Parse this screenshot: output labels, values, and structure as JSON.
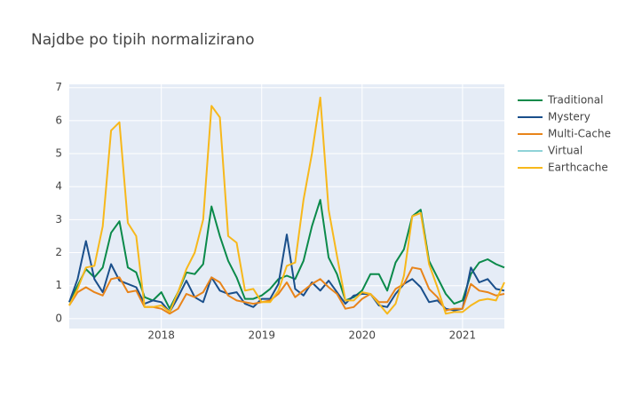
{
  "chart_data": {
    "type": "line",
    "title": "Najdbe po tipih normalizirano",
    "x": [
      "2017-02",
      "2017-03",
      "2017-04",
      "2017-05",
      "2017-06",
      "2017-07",
      "2017-08",
      "2017-09",
      "2017-10",
      "2017-11",
      "2017-12",
      "2018-01",
      "2018-02",
      "2018-03",
      "2018-04",
      "2018-05",
      "2018-06",
      "2018-07",
      "2018-08",
      "2018-09",
      "2018-10",
      "2018-11",
      "2018-12",
      "2019-01",
      "2019-02",
      "2019-03",
      "2019-04",
      "2019-05",
      "2019-06",
      "2019-07",
      "2019-08",
      "2019-09",
      "2019-10",
      "2019-11",
      "2019-12",
      "2020-01",
      "2020-02",
      "2020-03",
      "2020-04",
      "2020-05",
      "2020-06",
      "2020-07",
      "2020-08",
      "2020-09",
      "2020-10",
      "2020-11",
      "2020-12",
      "2021-01",
      "2021-02",
      "2021-03",
      "2021-04",
      "2021-05",
      "2021-06"
    ],
    "series": [
      {
        "name": "Traditional",
        "color": "#0b8a4a",
        "values": [
          0.5,
          1.0,
          1.5,
          1.25,
          1.55,
          2.6,
          2.95,
          1.55,
          1.4,
          0.65,
          0.55,
          0.8,
          0.3,
          0.8,
          1.4,
          1.35,
          1.65,
          3.4,
          2.5,
          1.75,
          1.25,
          0.6,
          0.6,
          0.7,
          0.9,
          1.2,
          1.3,
          1.2,
          1.75,
          2.8,
          3.6,
          1.85,
          1.35,
          0.55,
          0.65,
          0.85,
          1.35,
          1.35,
          0.85,
          1.7,
          2.1,
          3.1,
          3.3,
          1.75,
          1.25,
          0.75,
          0.45,
          0.55,
          1.35,
          1.7,
          1.8,
          1.65,
          1.55
        ]
      },
      {
        "name": "Mystery",
        "color": "#1a4f8b",
        "values": [
          0.5,
          1.2,
          2.35,
          1.2,
          0.8,
          1.65,
          1.15,
          1.05,
          0.95,
          0.45,
          0.55,
          0.5,
          0.2,
          0.65,
          1.15,
          0.65,
          0.5,
          1.25,
          0.85,
          0.75,
          0.8,
          0.45,
          0.35,
          0.6,
          0.6,
          1.05,
          2.55,
          0.9,
          0.7,
          1.1,
          0.85,
          1.15,
          0.8,
          0.45,
          0.7,
          0.75,
          0.75,
          0.4,
          0.35,
          0.75,
          1.05,
          1.2,
          0.95,
          0.5,
          0.55,
          0.3,
          0.25,
          0.3,
          1.55,
          1.1,
          1.2,
          0.9,
          0.85
        ]
      },
      {
        "name": "Multi-Cache",
        "color": "#e8841a",
        "values": [
          0.4,
          0.8,
          0.95,
          0.8,
          0.7,
          1.2,
          1.25,
          0.8,
          0.85,
          0.35,
          0.35,
          0.3,
          0.15,
          0.3,
          0.75,
          0.65,
          0.8,
          1.25,
          1.1,
          0.7,
          0.55,
          0.5,
          0.45,
          0.5,
          0.55,
          0.75,
          1.1,
          0.65,
          0.85,
          1.05,
          1.2,
          0.95,
          0.75,
          0.3,
          0.35,
          0.6,
          0.75,
          0.5,
          0.5,
          0.9,
          1.05,
          1.55,
          1.5,
          0.9,
          0.65,
          0.25,
          0.3,
          0.3,
          1.05,
          0.85,
          0.8,
          0.7,
          0.75
        ]
      },
      {
        "name": "Virtual",
        "color": "#8fd3d8",
        "values": [
          null,
          null,
          null,
          null,
          null,
          null,
          null,
          null,
          null,
          null,
          null,
          null,
          null,
          null,
          null,
          null,
          null,
          null,
          null,
          null,
          null,
          null,
          null,
          null,
          null,
          null,
          null,
          null,
          null,
          null,
          null,
          null,
          null,
          null,
          null,
          null,
          null,
          null,
          null,
          null,
          null,
          null,
          null,
          null,
          null,
          null,
          null,
          null,
          null,
          null,
          null,
          null,
          null
        ]
      },
      {
        "name": "Earthcache",
        "color": "#f7b81b",
        "values": [
          0.4,
          0.9,
          1.55,
          1.6,
          2.8,
          5.7,
          5.95,
          2.9,
          2.5,
          0.35,
          0.35,
          0.4,
          0.2,
          0.8,
          1.5,
          2.0,
          3.0,
          6.45,
          6.1,
          2.5,
          2.3,
          0.85,
          0.9,
          0.5,
          0.5,
          0.85,
          1.6,
          1.7,
          3.6,
          5.0,
          6.7,
          3.3,
          1.9,
          0.55,
          0.55,
          0.8,
          0.75,
          0.45,
          0.15,
          0.45,
          1.3,
          3.1,
          3.2,
          1.65,
          0.95,
          0.15,
          0.2,
          0.2,
          0.4,
          0.55,
          0.6,
          0.55,
          1.1
        ]
      }
    ],
    "xlim": [
      "2017-02",
      "2021-06"
    ],
    "xticks": [
      {
        "value": "2018-01",
        "label": "2018"
      },
      {
        "value": "2019-01",
        "label": "2019"
      },
      {
        "value": "2020-01",
        "label": "2020"
      },
      {
        "value": "2021-01",
        "label": "2021"
      }
    ],
    "ylim": [
      -0.3,
      7.1
    ],
    "yticks": [
      0,
      1,
      2,
      3,
      4,
      5,
      6,
      7
    ],
    "grid": true,
    "legend": "right"
  }
}
